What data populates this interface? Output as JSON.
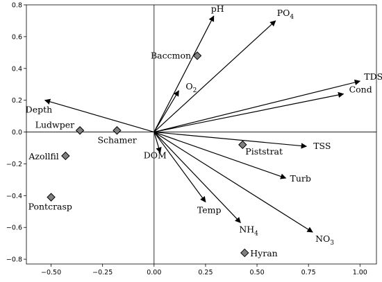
{
  "chart_data": {
    "type": "scatter",
    "title": "",
    "xlabel": "",
    "ylabel": "",
    "xlim": [
      -0.62,
      1.08
    ],
    "ylim": [
      -0.83,
      0.8
    ],
    "grid": false,
    "x_ticks": [
      -0.5,
      -0.25,
      0.0,
      0.25,
      0.5,
      0.75,
      1.0
    ],
    "y_ticks": [
      -0.8,
      -0.6,
      -0.4,
      -0.2,
      0.0,
      0.2,
      0.4,
      0.6,
      0.8
    ],
    "x_tick_labels": [
      "−0.50",
      "−0.25",
      "0.00",
      "0.25",
      "0.50",
      "0.75",
      "1.00"
    ],
    "y_tick_labels": [
      "−0.8",
      "−0.6",
      "−0.4",
      "−0.2",
      "0.0",
      "0.2",
      "0.4",
      "0.6",
      "0.8"
    ],
    "vectors": [
      {
        "label": "pH",
        "sub": "",
        "x": 0.29,
        "y": 0.73
      },
      {
        "label": "PO",
        "sub": "4",
        "x": 0.59,
        "y": 0.7
      },
      {
        "label": "O",
        "sub": "2",
        "x": 0.12,
        "y": 0.26
      },
      {
        "label": "TDS",
        "sub": "",
        "x": 1.0,
        "y": 0.32
      },
      {
        "label": "Cond",
        "sub": "",
        "x": 0.92,
        "y": 0.24
      },
      {
        "label": "Depth",
        "sub": "",
        "x": -0.53,
        "y": 0.2
      },
      {
        "label": "TSS",
        "sub": "",
        "x": 0.74,
        "y": -0.09
      },
      {
        "label": "Turb",
        "sub": "",
        "x": 0.64,
        "y": -0.29
      },
      {
        "label": "NO",
        "sub": "3",
        "x": 0.77,
        "y": -0.63
      },
      {
        "label": "NH",
        "sub": "4",
        "x": 0.42,
        "y": -0.57
      },
      {
        "label": "Temp",
        "sub": "",
        "x": 0.25,
        "y": -0.44
      },
      {
        "label": "DOM",
        "sub": "",
        "x": 0.03,
        "y": -0.13
      }
    ],
    "species": [
      {
        "label": "Baccmon",
        "x": 0.21,
        "y": 0.48
      },
      {
        "label": "Ludwper",
        "x": -0.36,
        "y": 0.01
      },
      {
        "label": "Schamer",
        "x": -0.18,
        "y": 0.01
      },
      {
        "label": "Azollfil",
        "x": -0.43,
        "y": -0.15
      },
      {
        "label": "Pontcrasp",
        "x": -0.5,
        "y": -0.41
      },
      {
        "label": "Piststrat",
        "x": 0.43,
        "y": -0.08
      },
      {
        "label": "Hyran",
        "x": 0.44,
        "y": -0.76
      }
    ],
    "colors": {
      "arrow": "#000000",
      "marker_fill": "#808080",
      "marker_stroke": "#000000",
      "axis": "#000000"
    }
  }
}
